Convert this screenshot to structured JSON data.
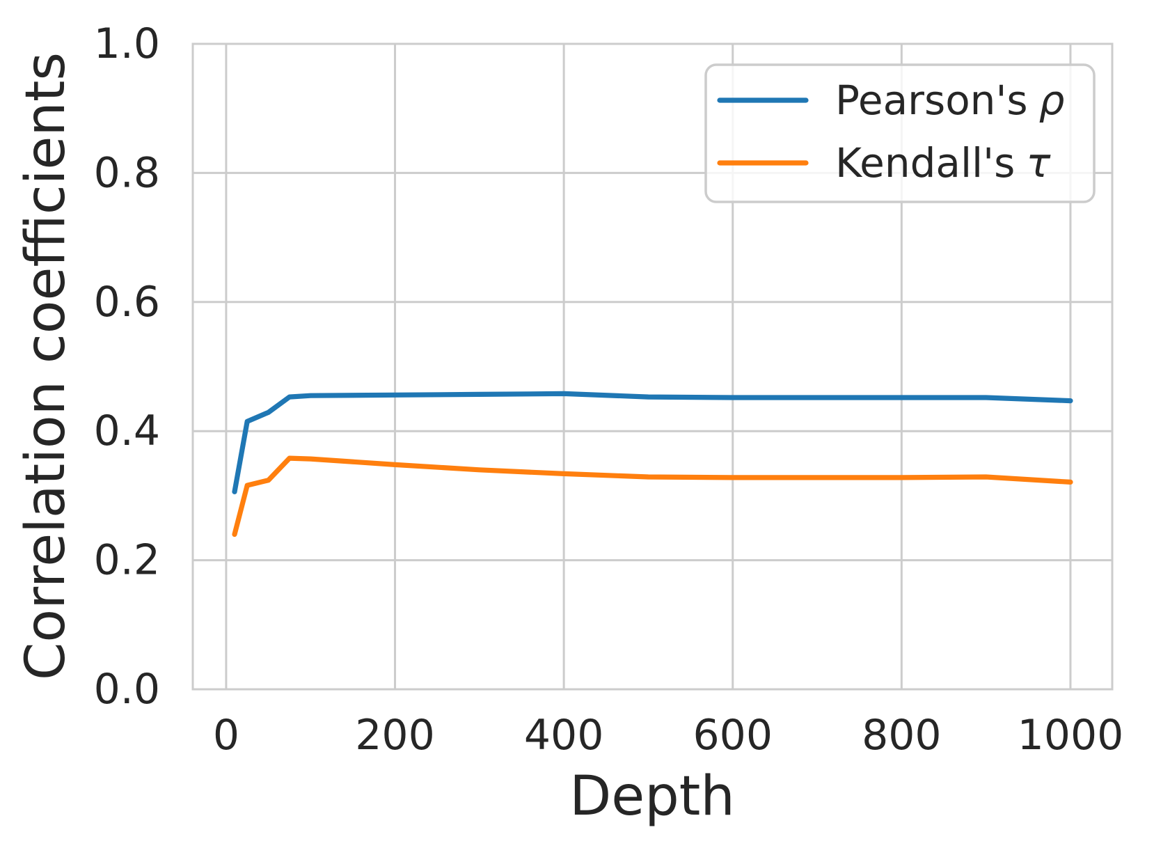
{
  "chart_data": {
    "type": "line",
    "title": "",
    "xlabel": "Depth",
    "ylabel": "Correlation coefficients",
    "xlim": [
      -39.5,
      1049.5
    ],
    "ylim": [
      0.0,
      1.0
    ],
    "grid": true,
    "legend_position": "upper right",
    "xticks": {
      "values": [
        0,
        200,
        400,
        600,
        800,
        1000
      ],
      "labels": [
        "0",
        "200",
        "400",
        "600",
        "800",
        "1000"
      ]
    },
    "yticks": {
      "values": [
        0.0,
        0.2,
        0.4,
        0.6,
        0.8,
        1.0
      ],
      "labels": [
        "0.0",
        "0.2",
        "0.4",
        "0.6",
        "0.8",
        "1.0"
      ]
    },
    "x": [
      10,
      25,
      50,
      75,
      100,
      200,
      300,
      400,
      500,
      600,
      700,
      800,
      900,
      1000
    ],
    "series": [
      {
        "name": "Pearson's ρ",
        "color": "#1f77b4",
        "values": [
          0.306,
          0.415,
          0.429,
          0.453,
          0.455,
          0.456,
          0.457,
          0.458,
          0.453,
          0.452,
          0.452,
          0.452,
          0.452,
          0.447
        ]
      },
      {
        "name": "Kendall's τ",
        "color": "#ff7f0e",
        "values": [
          0.24,
          0.316,
          0.324,
          0.358,
          0.357,
          0.348,
          0.34,
          0.334,
          0.329,
          0.328,
          0.328,
          0.328,
          0.329,
          0.321
        ]
      }
    ],
    "legend": {
      "entries": [
        {
          "label": "Pearson's",
          "symbol": "ρ"
        },
        {
          "label": "Kendall's",
          "symbol": "τ"
        }
      ]
    },
    "colors": {
      "grid": "#cccccc",
      "spine": "#cccccc",
      "text": "#262626",
      "background": "#ffffff"
    }
  }
}
